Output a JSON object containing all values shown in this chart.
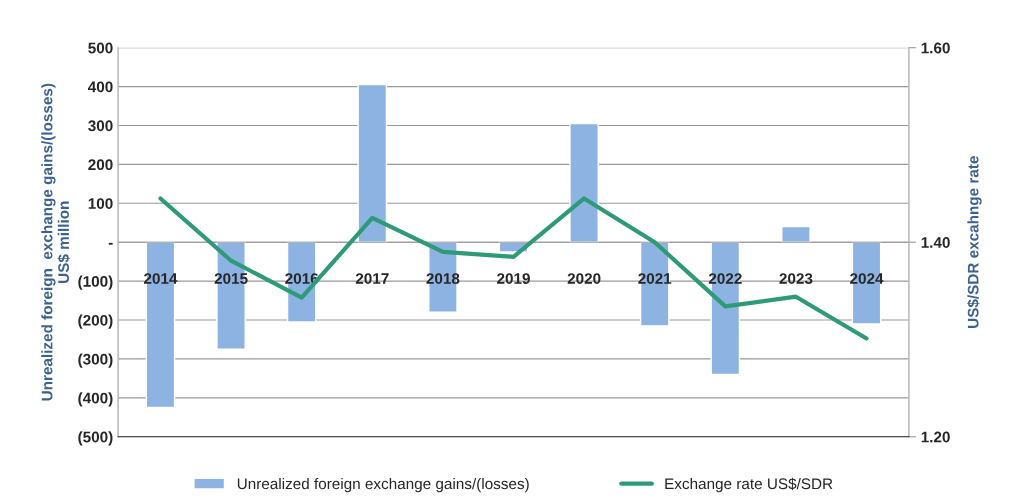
{
  "chart_data": {
    "type": "bar",
    "ylabel": "Unrealized foreign  exchange gains/(losses)\nUS$ million",
    "y2label": "US$/SDR excahnge rate",
    "categories": [
      "2014",
      "2015",
      "2016",
      "2017",
      "2018",
      "2019",
      "2020",
      "2021",
      "2022",
      "2023",
      "2024"
    ],
    "series": [
      {
        "name": "Unrealized foreign exchange gains/(losses)",
        "color": "#8db3e2",
        "values": [
          -425,
          -275,
          -205,
          405,
          -180,
          -25,
          305,
          -215,
          -340,
          40,
          -210
        ]
      },
      {
        "name": "Exchange rate US$/SDR",
        "type": "line",
        "axis": "y2",
        "color": "#2e9a78",
        "values": [
          1.445,
          1.381,
          1.343,
          1.425,
          1.39,
          1.385,
          1.445,
          1.4,
          1.334,
          1.344,
          1.301
        ]
      }
    ],
    "ylim": [
      -500,
      500
    ],
    "yticks": [
      {
        "value": -500,
        "label": "(500)"
      },
      {
        "value": -400,
        "label": "(400)"
      },
      {
        "value": -300,
        "label": "(300)"
      },
      {
        "value": -200,
        "label": "(200)"
      },
      {
        "value": -100,
        "label": "(100)"
      },
      {
        "value": 0,
        "label": "-"
      },
      100,
      200,
      300,
      400,
      500
    ],
    "y2lim": [
      1.2,
      1.6
    ],
    "y2ticks": [
      {
        "value": 1.2,
        "label": "1.20"
      },
      {
        "value": 1.4,
        "label": "1.40"
      },
      {
        "value": 1.6,
        "label": "1.60"
      }
    ],
    "grid": "y",
    "legend": "bottom"
  }
}
